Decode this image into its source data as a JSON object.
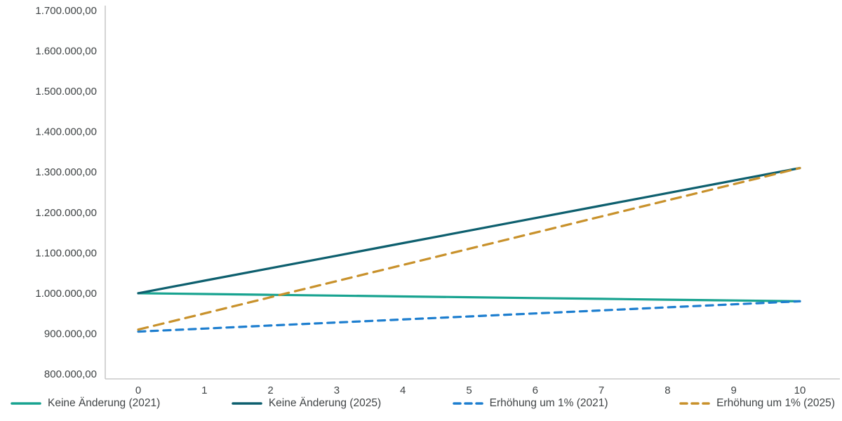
{
  "chart_data": {
    "type": "line",
    "title": "",
    "xlabel": "",
    "ylabel": "",
    "grid": false,
    "legend_position": "bottom",
    "xlim": [
      0,
      10
    ],
    "ylim": [
      800000,
      1700000
    ],
    "x": [
      0,
      1,
      2,
      3,
      4,
      5,
      6,
      7,
      8,
      9,
      10
    ],
    "x_tick_labels": [
      "0",
      "1",
      "2",
      "3",
      "4",
      "5",
      "6",
      "7",
      "8",
      "9",
      "10"
    ],
    "y_tick_values": [
      800000,
      900000,
      1000000,
      1100000,
      1200000,
      1300000,
      1400000,
      1500000,
      1600000,
      1700000
    ],
    "y_tick_labels": [
      "800.000,00",
      "900.000,00",
      "1.000.000,00",
      "1.100.000,00",
      "1.200.000,00",
      "1.300.000,00",
      "1.400.000,00",
      "1.500.000,00",
      "1.600.000,00",
      "1.700.000,00"
    ],
    "series": [
      {
        "name": "Keine Änderung (2021)",
        "color": "#18a390",
        "dash": "solid",
        "dash_pattern": "",
        "values": [
          1000000,
          998000,
          996000,
          994000,
          992000,
          990000,
          988000,
          986000,
          984000,
          982000,
          980000
        ]
      },
      {
        "name": "Keine Änderung (2025)",
        "color": "#0d5f6e",
        "dash": "solid",
        "dash_pattern": "",
        "values": [
          1000000,
          1031000,
          1062000,
          1093000,
          1124000,
          1155000,
          1186000,
          1217000,
          1248000,
          1279000,
          1310000
        ]
      },
      {
        "name": "Erhöhung um 1% (2021)",
        "color": "#1d7ecf",
        "dash": "dashed",
        "dash_pattern": "10 8",
        "values": [
          905000,
          912500,
          920000,
          927500,
          935000,
          942500,
          950000,
          957500,
          965000,
          972500,
          980000
        ]
      },
      {
        "name": "Erhöhung um 1% (2025)",
        "color": "#c8912b",
        "dash": "dashed",
        "dash_pattern": "14 9",
        "values": [
          910000,
          950000,
          990000,
          1030000,
          1070000,
          1110000,
          1150000,
          1190000,
          1230000,
          1270000,
          1310000
        ]
      }
    ],
    "axis_color": "#c9c9c9",
    "tick_label_color": "#3f4345"
  }
}
